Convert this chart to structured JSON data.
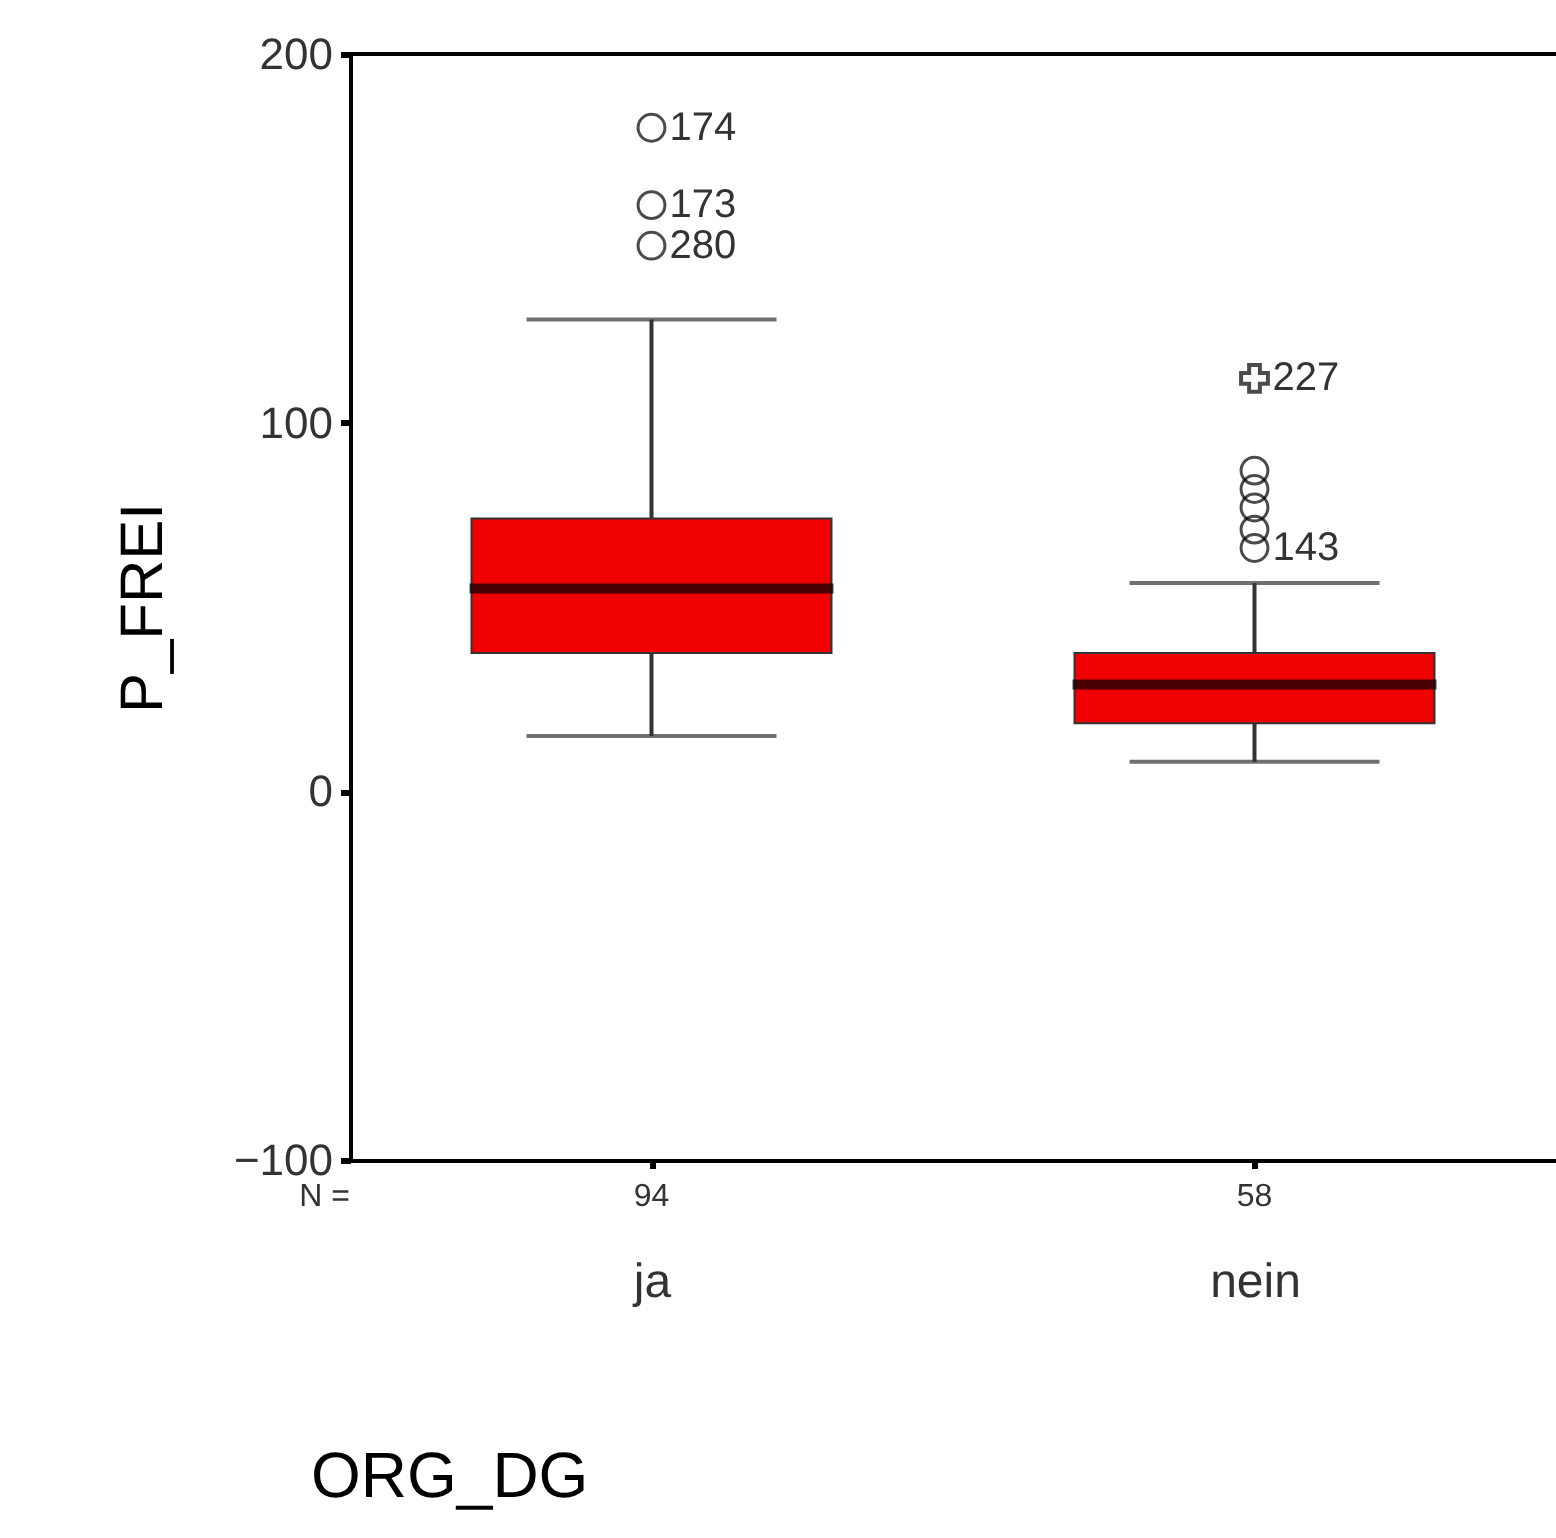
{
  "chart_data": {
    "type": "box",
    "xlabel": "ORG_DG",
    "ylabel": "P_FREI",
    "categories": [
      "ja",
      "nein"
    ],
    "ylim": [
      -100,
      200
    ],
    "yticks": [
      -100,
      0,
      100,
      200
    ],
    "series": [
      {
        "color": "#f00000",
        "boxes": [
          {
            "low": 15,
            "q1": 37.5,
            "median": 55,
            "q3": 74,
            "high": 128,
            "outliers": [
              148,
              159,
              180
            ]
          },
          {
            "low": 8,
            "q1": 18.5,
            "median": 29,
            "q3": 37.5,
            "high": 56.5,
            "outliers": [
              66,
              71,
              77,
              82,
              87
            ]
          }
        ]
      },
      {
        "type": "scatter",
        "marker": "cross",
        "color": "#000000",
        "x": [
          "nein"
        ],
        "values": [
          112
        ]
      }
    ],
    "annotations": [
      "174",
      "173",
      "280",
      "227",
      "143",
      "N =",
      "94",
      "58"
    ]
  }
}
